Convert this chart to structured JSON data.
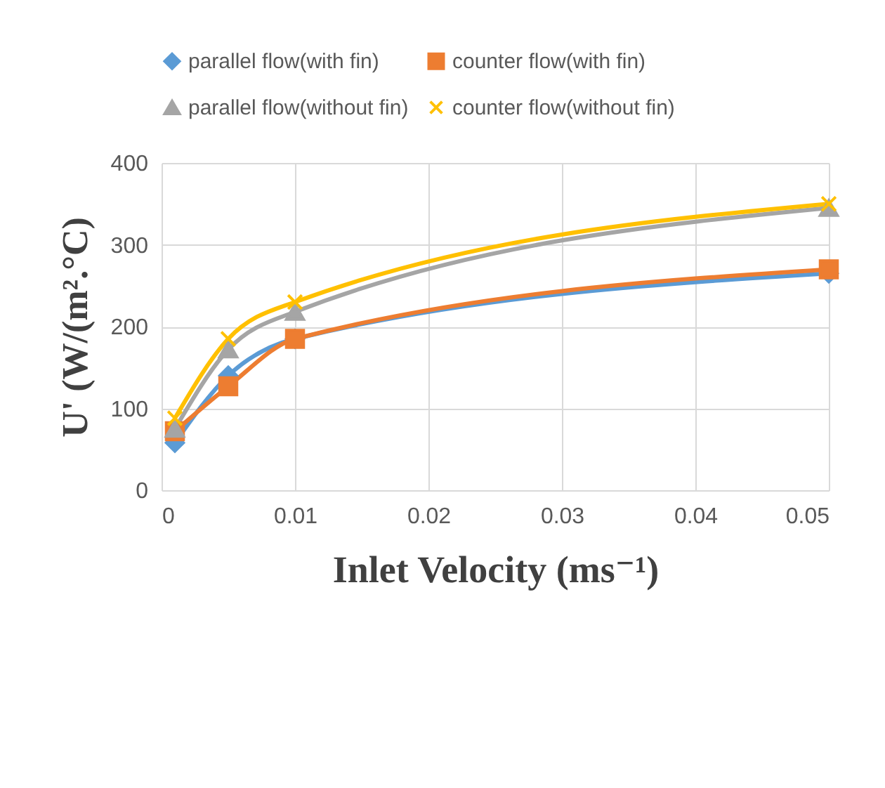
{
  "chart_data": {
    "type": "line",
    "xlabel": "Inlet Velocity (ms⁻¹)",
    "ylabel": "U' (W/(m².°C)",
    "x": [
      0.001,
      0.005,
      0.01,
      0.05
    ],
    "series": [
      {
        "name": "parallel flow(with fin)",
        "color": "#5b9bd5",
        "marker": "diamond",
        "values": [
          58,
          140,
          185,
          265
        ]
      },
      {
        "name": "counter flow(with fin)",
        "color": "#ed7d31",
        "marker": "square",
        "values": [
          72,
          127,
          185,
          270
        ]
      },
      {
        "name": "parallel flow(without fin)",
        "color": "#a5a5a5",
        "marker": "triangle",
        "values": [
          75,
          172,
          218,
          345
        ]
      },
      {
        "name": "counter flow(without fin)",
        "color": "#ffc000",
        "marker": "cross",
        "values": [
          88,
          185,
          230,
          350
        ]
      }
    ],
    "xlim": [
      0,
      0.05
    ],
    "xticks": [
      0,
      0.01,
      0.02,
      0.03,
      0.04,
      0.05
    ],
    "ylim": [
      0,
      400
    ],
    "yticks": [
      0,
      100,
      200,
      300,
      400
    ],
    "grid": true,
    "legend": "top",
    "line_style": "solid"
  }
}
